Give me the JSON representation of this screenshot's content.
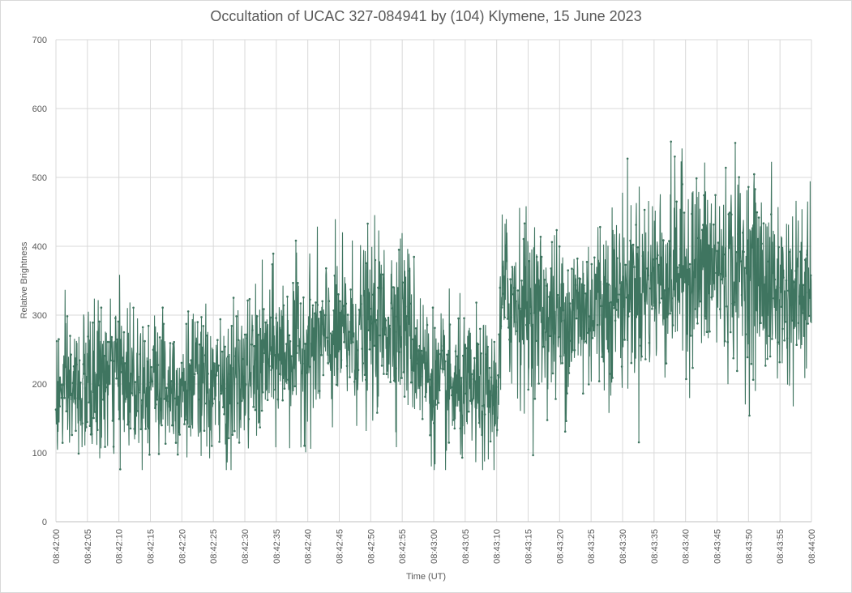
{
  "chart_data": {
    "type": "line",
    "title": "Occultation of UCAC 327-084941 by (104) Klymene, 15 June 2023",
    "xlabel": "Time (UT)",
    "ylabel": "Relative Brightness",
    "ylim": [
      0,
      700
    ],
    "yticks": [
      "0",
      "100",
      "200",
      "300",
      "400",
      "500",
      "600",
      "700"
    ],
    "xlim_seconds": [
      0,
      120
    ],
    "xticks": [
      "08:42:00",
      "08:42:05",
      "08:42:10",
      "08:42:15",
      "08:42:20",
      "08:42:25",
      "08:42:30",
      "08:42:35",
      "08:42:40",
      "08:42:45",
      "08:42:50",
      "08:42:55",
      "08:43:00",
      "08:43:05",
      "08:43:10",
      "08:43:15",
      "08:43:20",
      "08:43:25",
      "08:43:30",
      "08:43:35",
      "08:43:40",
      "08:43:45",
      "08:43:50",
      "08:43:55",
      "08:44:00"
    ],
    "grid": true,
    "series_color": "#3f7560",
    "trend": {
      "x": [
        "08:42:00",
        "08:42:10",
        "08:42:20",
        "08:42:27",
        "08:42:35",
        "08:42:45",
        "08:42:55",
        "08:43:00",
        "08:43:10",
        "08:43:11",
        "08:43:20",
        "08:43:30",
        "08:43:40",
        "08:43:50",
        "08:43:55",
        "08:44:00"
      ],
      "y": [
        180,
        215,
        200,
        190,
        245,
        265,
        300,
        195,
        180,
        330,
        290,
        335,
        370,
        365,
        330,
        330
      ]
    },
    "noise_amplitude": 75,
    "sample_count": 2400
  }
}
